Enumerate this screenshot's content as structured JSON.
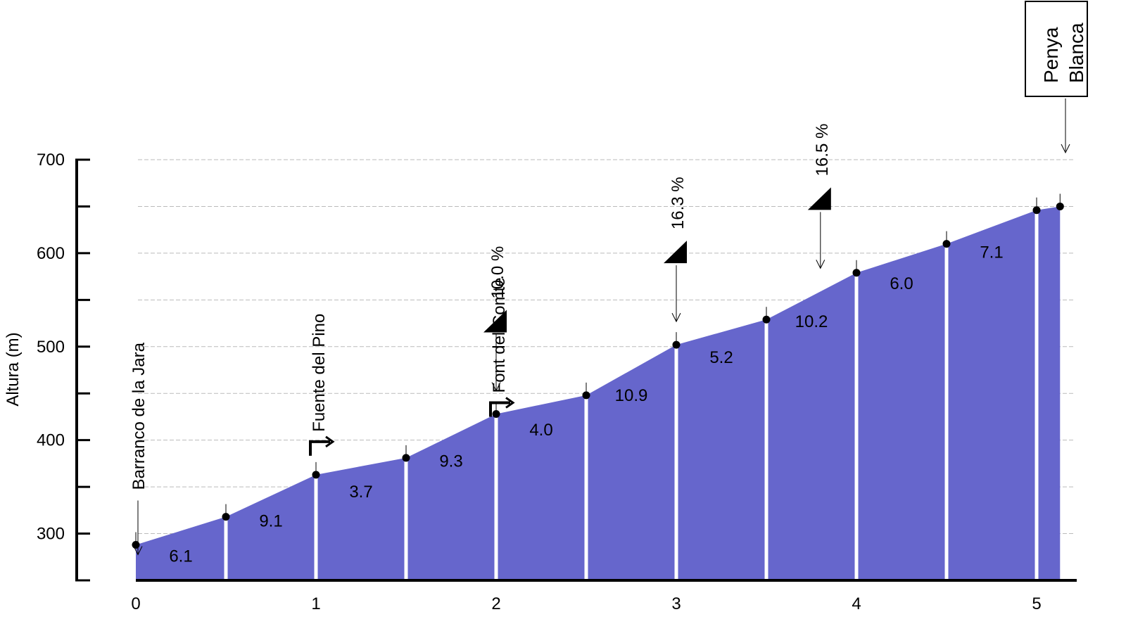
{
  "chart_data": {
    "type": "area",
    "y_label": "Altura (m)",
    "x": [
      0,
      0.5,
      1,
      1.5,
      2,
      2.5,
      3,
      3.5,
      4,
      4.5,
      5,
      5.13
    ],
    "series": [
      {
        "color": "#6666cc",
        "values": [
          288,
          318,
          363,
          381,
          428,
          448,
          502,
          529,
          579,
          610,
          646,
          650
        ]
      }
    ],
    "segments": {
      "values": [
        6.1,
        9.1,
        3.7,
        9.3,
        4,
        10.9,
        5.2,
        10.2,
        6,
        7.1
      ],
      "value_labels": [
        "6.1",
        "9.1",
        "3.7",
        "9.3",
        "4.0",
        "10.9",
        "5.2",
        "10.2",
        "6.0",
        "7.1"
      ]
    },
    "xlim": [
      0,
      5.13
    ],
    "xticks": [
      0,
      1,
      2,
      3,
      4,
      5
    ],
    "ylim": [
      250,
      700
    ],
    "yticks": [
      300,
      400,
      500,
      600,
      700
    ],
    "yminorticks": [
      250,
      350,
      450,
      550,
      650
    ],
    "grid": true,
    "places": [
      {
        "x": 0,
        "label": "Barranco de la Jara"
      },
      {
        "x": 1,
        "label": "Fuente del Pino"
      },
      {
        "x": 2,
        "label": "Font del Comte"
      }
    ],
    "summit": {
      "x": 5.13,
      "lines": [
        "Penya",
        "Blanca"
      ]
    },
    "max_gradients": [
      {
        "x": 2,
        "value": 10,
        "label": "10.0 %"
      },
      {
        "x": 3,
        "value": 16.3,
        "label": "16.3 %"
      },
      {
        "x": 3.8,
        "value": 16.5,
        "label": "16.5 %"
      }
    ]
  }
}
